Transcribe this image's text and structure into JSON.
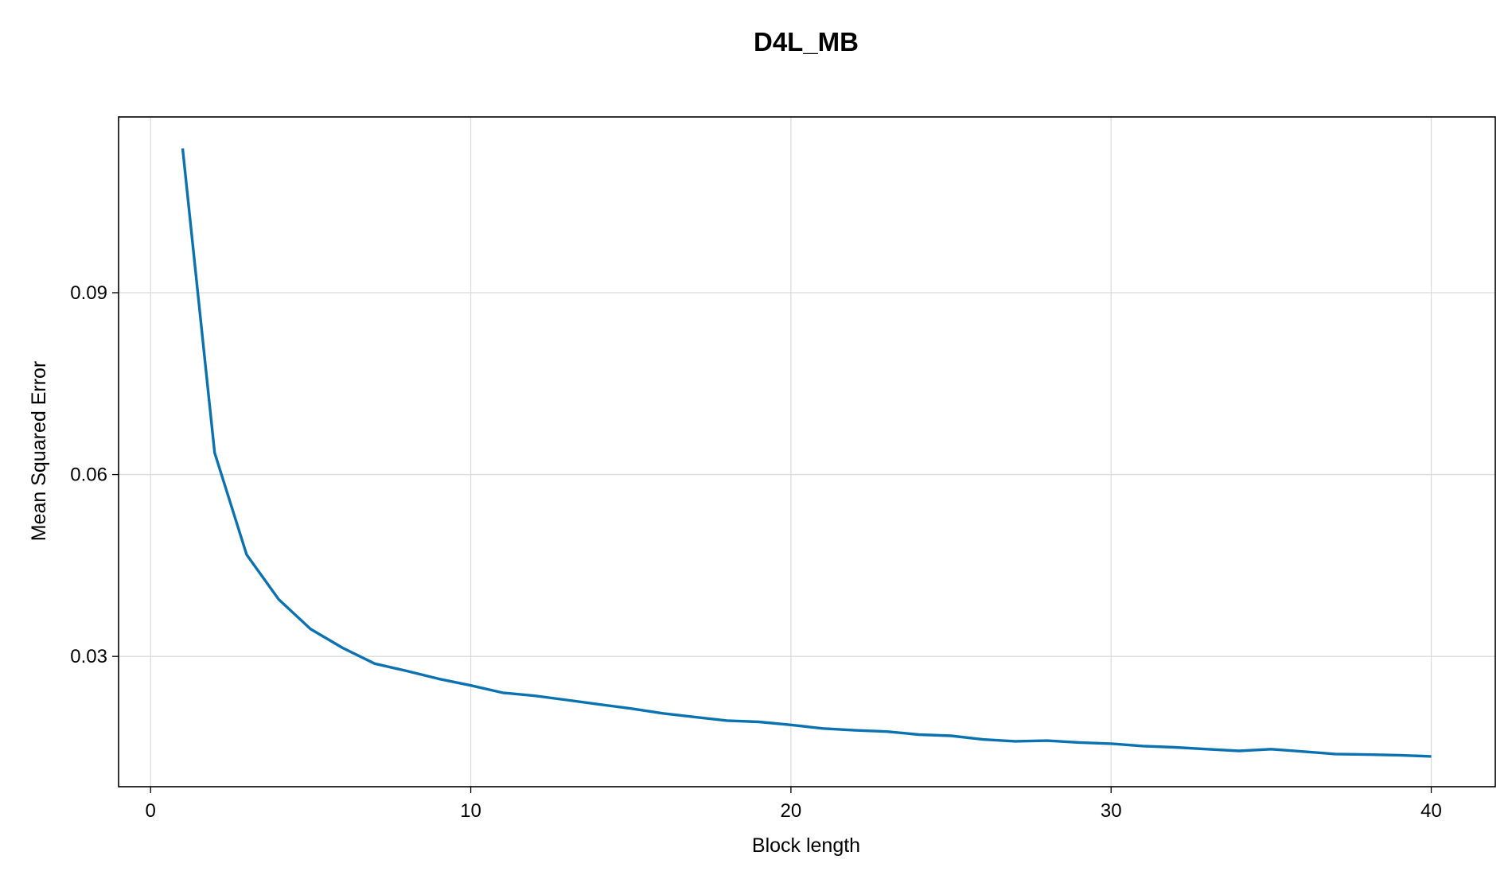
{
  "chart_data": {
    "type": "line",
    "title": "D4L_MB",
    "xlabel": "Block length",
    "ylabel": "Mean Squared Error",
    "xlim": [
      -1,
      42
    ],
    "ylim": [
      0.0085,
      0.119
    ],
    "xticks": [
      0,
      10,
      20,
      30,
      40
    ],
    "xtick_labels": [
      "0",
      "10",
      "20",
      "30",
      "40"
    ],
    "yticks": [
      0.03,
      0.06,
      0.09
    ],
    "ytick_labels": [
      "0.03",
      "0.06",
      "0.09"
    ],
    "grid": true,
    "legend": "none",
    "series": [
      {
        "color": "#0a72b0",
        "x": [
          1,
          2,
          3,
          4,
          5,
          6,
          7,
          8,
          9,
          10,
          11,
          12,
          13,
          14,
          15,
          16,
          17,
          18,
          19,
          20,
          21,
          22,
          23,
          24,
          25,
          26,
          27,
          28,
          29,
          30,
          31,
          32,
          33,
          34,
          35,
          36,
          37,
          38,
          39,
          40
        ],
        "values": [
          0.1138,
          0.0636,
          0.0468,
          0.0394,
          0.0345,
          0.0314,
          0.0288,
          0.0276,
          0.0263,
          0.0252,
          0.024,
          0.0235,
          0.0228,
          0.0221,
          0.0214,
          0.0206,
          0.02,
          0.0194,
          0.0192,
          0.0187,
          0.0181,
          0.0178,
          0.0176,
          0.0171,
          0.0169,
          0.0163,
          0.016,
          0.0161,
          0.0158,
          0.0156,
          0.0152,
          0.015,
          0.0147,
          0.0144,
          0.0147,
          0.0143,
          0.0139,
          0.0138,
          0.0137,
          0.0135
        ]
      }
    ]
  }
}
